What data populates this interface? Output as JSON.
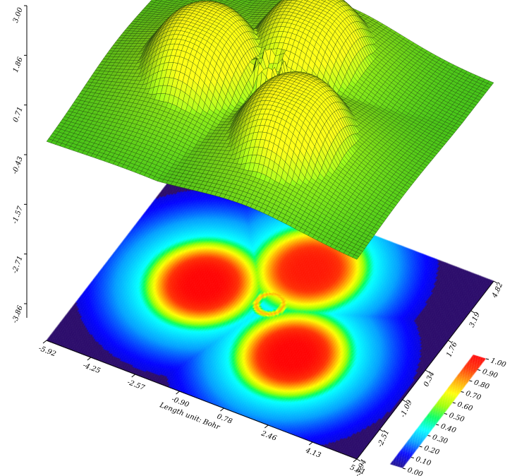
{
  "chart_data": {
    "type": "surface",
    "title": "",
    "xlabel": "Length unit: Bohr",
    "ylabel": "",
    "zlabel": "",
    "xlim": [
      -5.92,
      5.81
    ],
    "ylim": [
      -3.94,
      4.82
    ],
    "zlim": [
      -3.86,
      3.0
    ],
    "x_ticks": [
      "-5.92",
      "-4.25",
      "-2.57",
      "-0.90",
      "0.78",
      "2.46",
      "4.13",
      "5.81"
    ],
    "y_ticks": [
      "-3.94",
      "-2.51",
      "-1.09",
      "0.34",
      "1.76",
      "3.19",
      "4.82"
    ],
    "z_ticks": [
      "3.00",
      "1.86",
      "0.71",
      "-0.43",
      "-1.57",
      "-2.71",
      "-3.86"
    ],
    "colorbar": {
      "ticks": [
        "0.00",
        "0.10",
        "0.20",
        "0.30",
        "0.40",
        "0.50",
        "0.60",
        "0.70",
        "0.80",
        "0.90",
        "1.00"
      ],
      "range": [
        0,
        1
      ],
      "colormap": [
        "#1a0a8c",
        "#0000ff",
        "#00a0ff",
        "#00ffff",
        "#00ff60",
        "#a0ff00",
        "#ffff00",
        "#ffa000",
        "#ff3000",
        "#ff0000"
      ]
    },
    "features": [
      {
        "name": "lobe-left",
        "x": -2.6,
        "y": 0.5,
        "value": 1.0
      },
      {
        "name": "lobe-top-right",
        "x": 0.2,
        "y": 2.6,
        "value": 0.95
      },
      {
        "name": "lobe-bottom-right",
        "x": 1.6,
        "y": -0.9,
        "value": 1.0
      },
      {
        "name": "ring-center",
        "x": -0.2,
        "y": 0.7,
        "value": 0.75
      }
    ],
    "surface_color": "#44c21a",
    "plane_background": "#2a0a6a"
  }
}
